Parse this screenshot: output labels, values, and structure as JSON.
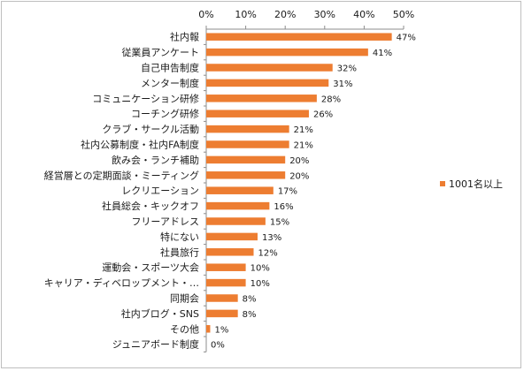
{
  "chart_data": {
    "type": "bar",
    "orientation": "horizontal",
    "categories": [
      "社内報",
      "従業員アンケート",
      "自己申告制度",
      "メンター制度",
      "コミュニケーション研修",
      "コーチング研修",
      "クラブ・サークル活動",
      "社内公募制度・社内FA制度",
      "飲み会・ランチ補助",
      "経営層との定期面談・ミーティング",
      "レクリエーション",
      "社員総会・キックオフ",
      "フリーアドレス",
      "特にない",
      "社員旅行",
      "運動会・スポーツ大会",
      "キャリア・ディベロップメント・…",
      "同期会",
      "社内ブログ・SNS",
      "その他",
      "ジュニアボード制度"
    ],
    "series": [
      {
        "name": "1001名以上",
        "values": [
          47,
          41,
          32,
          31,
          28,
          26,
          21,
          21,
          20,
          20,
          17,
          16,
          15,
          13,
          12,
          10,
          10,
          8,
          8,
          1,
          0
        ]
      }
    ],
    "data_labels": [
      "47%",
      "41%",
      "32%",
      "31%",
      "28%",
      "26%",
      "21%",
      "21%",
      "20%",
      "20%",
      "17%",
      "16%",
      "15%",
      "13%",
      "12%",
      "10%",
      "10%",
      "8%",
      "8%",
      "1%",
      "0%"
    ],
    "x_ticks": [
      "0%",
      "10%",
      "20%",
      "30%",
      "40%",
      "50%"
    ],
    "xlim": [
      0,
      50
    ],
    "x_axis_position": "top",
    "grid": false,
    "legend_position": "right",
    "bar_color": "#ED7D31"
  }
}
